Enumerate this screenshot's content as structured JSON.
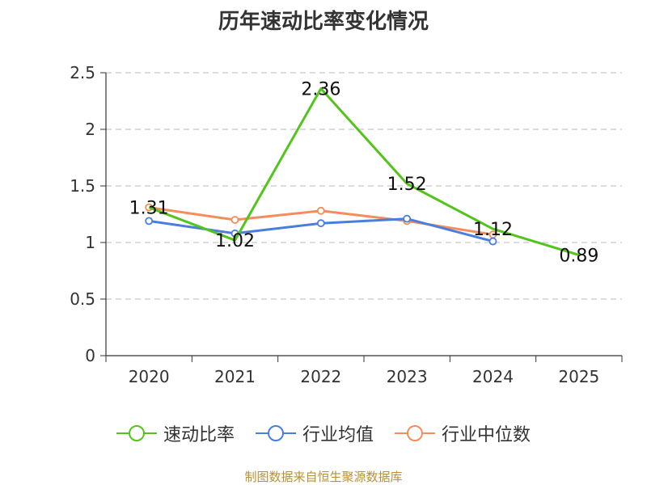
{
  "chart_data": {
    "type": "line",
    "title": "历年速动比率变化情况",
    "source_note": "制图数据来自恒生聚源数据库",
    "categories": [
      "2020",
      "2021",
      "2022",
      "2023",
      "2024",
      "2025"
    ],
    "ylim": [
      0,
      2.5
    ],
    "yticks": [
      0,
      0.5,
      1,
      1.5,
      2,
      2.5
    ],
    "ytick_labels": [
      "0",
      "0.5",
      "1",
      "1.5",
      "2",
      "2.5"
    ],
    "grid": true,
    "legend_position": "bottom",
    "series": [
      {
        "name": "速动比率",
        "color": "#52c41a",
        "values": [
          1.31,
          1.02,
          2.36,
          1.52,
          1.12,
          0.89
        ],
        "labels": [
          "1.31",
          "1.02",
          "2.36",
          "1.52",
          "1.12",
          "0.89"
        ]
      },
      {
        "name": "行业均值",
        "color": "#4a7ede",
        "values": [
          1.19,
          1.08,
          1.17,
          1.21,
          1.01,
          null
        ]
      },
      {
        "name": "行业中位数",
        "color": "#f38d5b",
        "values": [
          1.31,
          1.2,
          1.28,
          1.19,
          1.07,
          null
        ]
      }
    ]
  }
}
